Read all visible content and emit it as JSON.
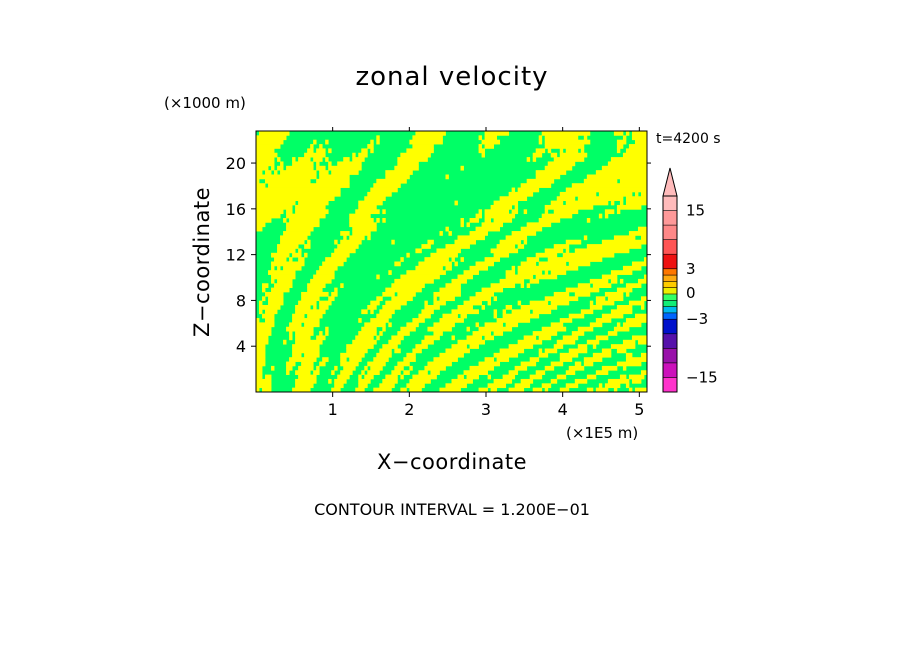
{
  "chart_data": {
    "type": "heatmap",
    "title": "zonal velocity",
    "xlabel": "X−coordinate",
    "ylabel": "Z−coordinate",
    "x_unit_label": "(×1E5 m)",
    "y_unit_label": "(×1000 m)",
    "time_label": "t=4200 s",
    "footer": "CONTOUR INTERVAL = 1.200E−01",
    "xlim": [
      0,
      5.1
    ],
    "ylim": [
      0,
      22.8
    ],
    "x_ticks": [
      1,
      2,
      3,
      4,
      5
    ],
    "x_tick_labels": [
      "1",
      "2",
      "3",
      "4",
      "5"
    ],
    "y_ticks": [
      4,
      8,
      12,
      16,
      20
    ],
    "y_tick_labels": [
      "4",
      "8",
      "12",
      "16",
      "20"
    ],
    "grid": false,
    "colorbar": {
      "levels": [
        -18,
        -15,
        -12,
        -9,
        -6,
        -3,
        -2,
        -1,
        -0.5,
        0,
        0.5,
        1,
        2,
        3,
        6,
        9,
        12,
        15,
        18
      ],
      "colors": [
        "#ff33cc",
        "#cc11bb",
        "#9911aa",
        "#5511aa",
        "#0011cc",
        "#0066ff",
        "#00bbee",
        "#11ee77",
        "#33ff66",
        "#eeee00",
        "#ffcc00",
        "#ffaa11",
        "#ff7700",
        "#ee1111",
        "#ff5555",
        "#ff8888",
        "#ff9999",
        "#ffbbbb"
      ],
      "tick_values": [
        15,
        3,
        0,
        -3,
        -15
      ],
      "tick_labels": [
        "15",
        "3",
        "0",
        "−3",
        "−15"
      ]
    },
    "field": {
      "description_colors": {
        "positive_small": "#ffff00",
        "negative_small": "#00ff66"
      }
    }
  }
}
